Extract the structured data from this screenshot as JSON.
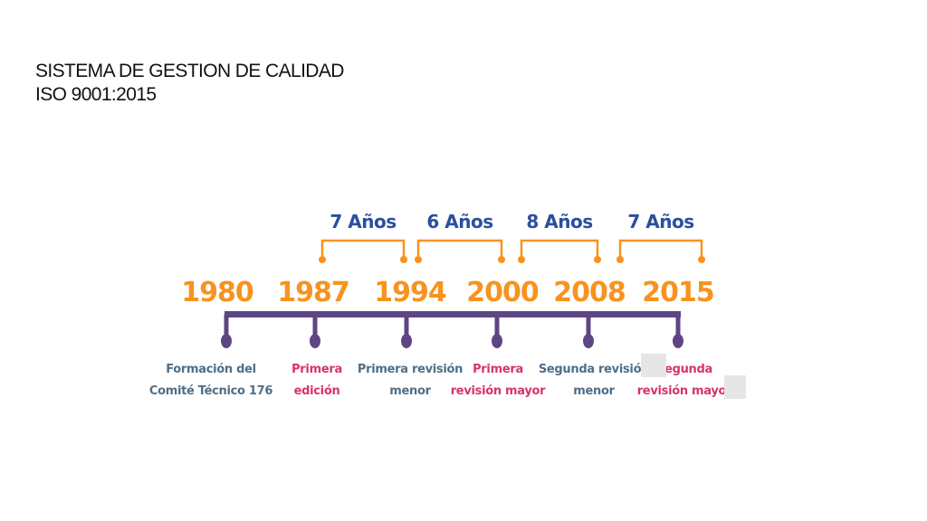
{
  "title": {
    "line1": "SISTEMA DE GESTION DE CALIDAD",
    "line2": "ISO 9001:2015"
  },
  "colors": {
    "orange": "#F7931E",
    "blue": "#2B4F9E",
    "purple": "#5E4583",
    "red": "#D6336C",
    "teal": "#4E6E87"
  },
  "years": [
    "1980",
    "1987",
    "1994",
    "2000",
    "2008",
    "2015"
  ],
  "intervals": [
    {
      "label": "7 Años",
      "from": "1987",
      "to": "1994"
    },
    {
      "label": "6 Años",
      "from": "1994",
      "to": "2000"
    },
    {
      "label": "8 Años",
      "from": "2000",
      "to": "2008"
    },
    {
      "label": "7 Años",
      "from": "2008",
      "to": "2015"
    }
  ],
  "events": [
    {
      "line1": "Formación del",
      "line2": "Comité Técnico 176",
      "color": "teal"
    },
    {
      "line1": "Primera",
      "line2": "edición",
      "color": "red"
    },
    {
      "line1": "Primera revisión",
      "line2": "menor",
      "color": "teal"
    },
    {
      "line1": "Primera",
      "line2": "revisión mayor",
      "color": "red"
    },
    {
      "line1": "Segunda revisión",
      "line2": "menor",
      "color": "teal"
    },
    {
      "line1": "Segunda",
      "line2": "revisión mayor",
      "color": "red"
    }
  ]
}
